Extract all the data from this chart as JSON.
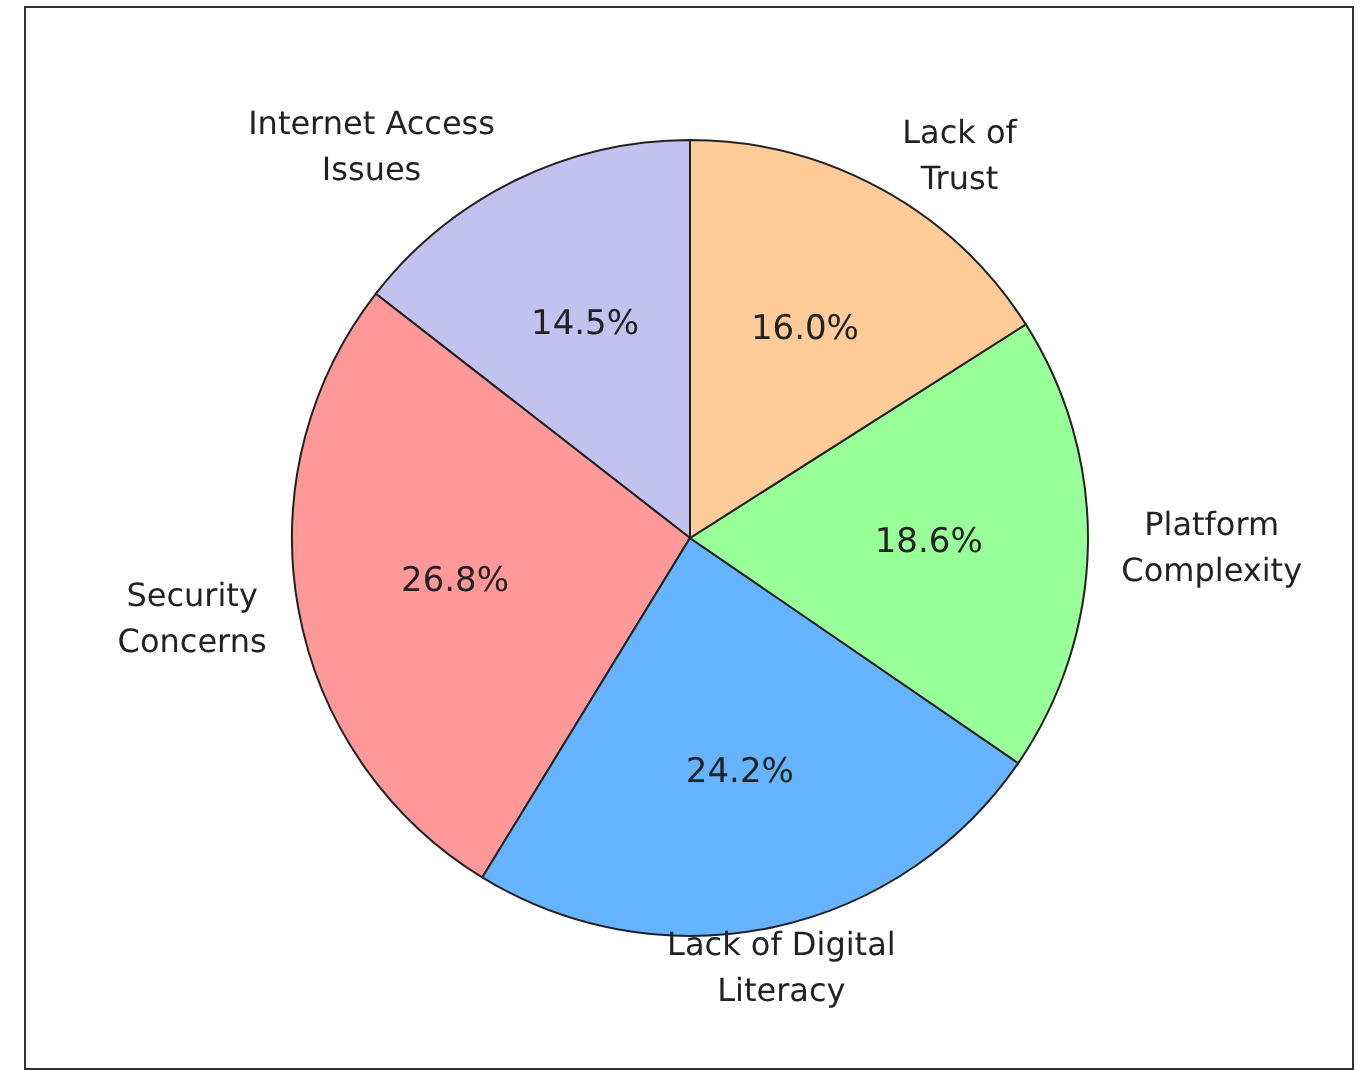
{
  "chart_data": {
    "type": "pie",
    "categories": [
      "Internet Access\nIssues",
      "Security\nConcerns",
      "Lack of Digital\nLiteracy",
      "Platform\nComplexity",
      "Lack of\nTrust"
    ],
    "values": [
      14.5,
      26.8,
      24.2,
      18.6,
      16.0
    ],
    "colors": [
      "#c2c2f0",
      "#ff9999",
      "#66b3ff",
      "#99ff99",
      "#ffcc99"
    ],
    "value_labels": [
      "14.5%",
      "26.8%",
      "24.2%",
      "18.6%",
      "16.0%"
    ]
  }
}
